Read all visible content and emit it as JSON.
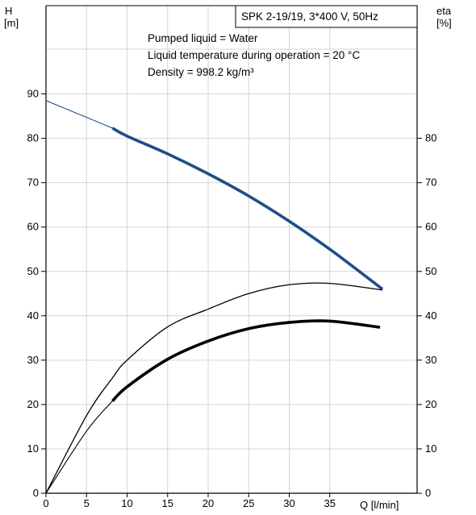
{
  "chart_data": {
    "type": "line",
    "title": "SPK 2-19/19, 3*400 V, 50Hz",
    "info_lines": [
      "Pumped liquid = Water",
      "Liquid temperature during operation = 20 °C",
      "Density = 998.2 kg/m³"
    ],
    "left_axis": {
      "label_line1": "H",
      "label_line2": "[m]",
      "range": [
        0,
        90
      ],
      "ticks": [
        "0",
        "10",
        "20",
        "30",
        "40",
        "50",
        "60",
        "70",
        "80",
        "90"
      ]
    },
    "right_axis": {
      "label_line1": "eta",
      "label_line2": "[%]",
      "range": [
        0,
        90
      ],
      "ticks": [
        "0",
        "10",
        "20",
        "30",
        "40",
        "50",
        "60",
        "70",
        "80"
      ]
    },
    "x_axis": {
      "label": "Q [l/min]",
      "range": [
        0,
        41
      ],
      "ticks": [
        "0",
        "5",
        "10",
        "15",
        "20",
        "25",
        "30",
        "35"
      ]
    },
    "grid": true,
    "series": [
      {
        "key": "head",
        "color": "#1f4e89",
        "x": [
          0,
          8.2,
          10,
          15,
          20,
          25,
          30,
          35,
          41.5
        ],
        "y": [
          88.5,
          82.3,
          80.5,
          76.5,
          72.0,
          67.0,
          61.3,
          55.0,
          46.0
        ],
        "bold_from_x": 8.2
      },
      {
        "key": "efficiency-upper",
        "color": "#000000",
        "x": [
          0,
          5,
          8.2,
          10,
          15,
          20,
          25,
          30,
          35,
          41.5
        ],
        "y": [
          0,
          17.5,
          26,
          30,
          37.5,
          41.5,
          45,
          47,
          47.3,
          45.8
        ],
        "bold_from_x": 99
      },
      {
        "key": "efficiency-lower",
        "color": "#000000",
        "x": [
          0,
          5,
          8.2,
          10,
          15,
          20,
          25,
          30,
          35,
          41.2
        ],
        "y": [
          0,
          14,
          20.8,
          24,
          30.2,
          34.3,
          37.1,
          38.5,
          38.8,
          37.4
        ],
        "bold_from_x": 8.2
      }
    ]
  }
}
